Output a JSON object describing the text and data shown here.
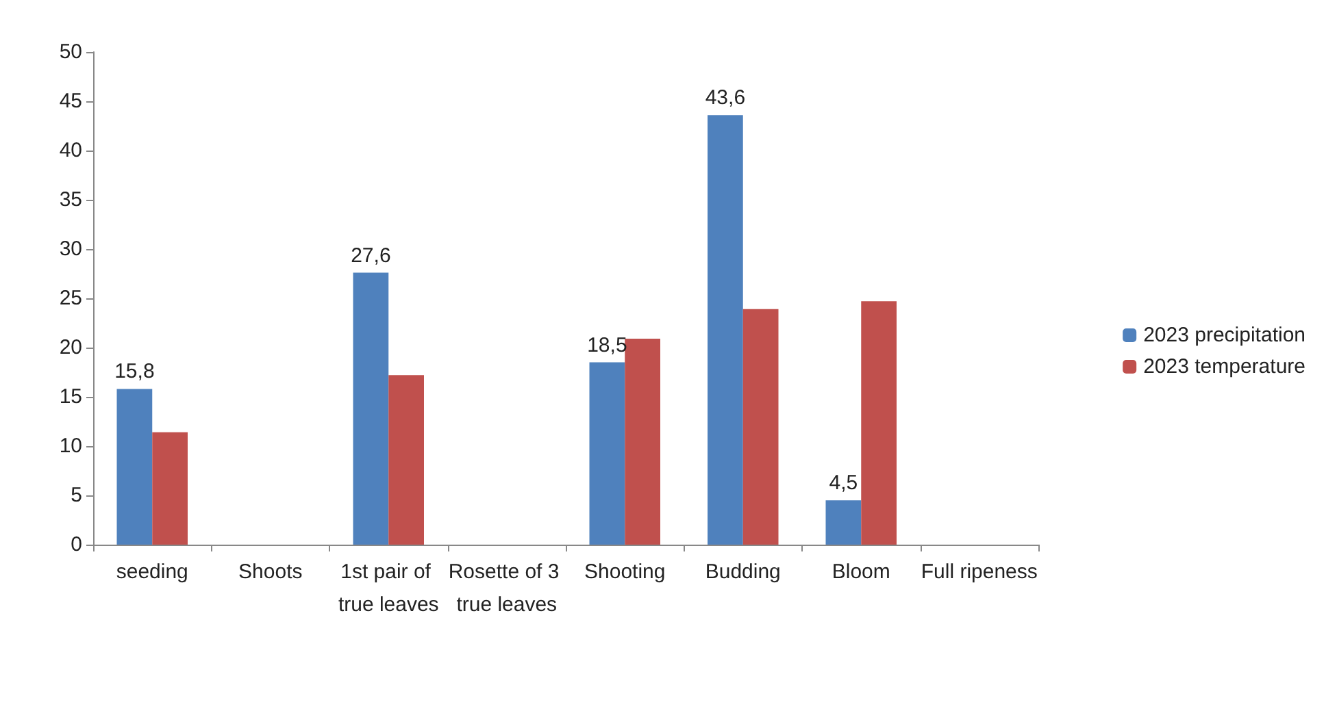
{
  "chart_data": {
    "type": "bar",
    "categories": [
      "seeding",
      "Shoots",
      "1st pair of true leaves",
      "Rosette of 3 true leaves",
      "Shooting",
      "Budding",
      "Bloom",
      "Full ripeness"
    ],
    "series": [
      {
        "name": "2023 precipitation",
        "color": "#4f81bd",
        "values": [
          15.8,
          null,
          27.6,
          null,
          18.5,
          43.6,
          4.5,
          null
        ],
        "value_labels": [
          "15,8",
          null,
          "27,6",
          null,
          "18,5",
          "43,6",
          "4,5",
          null
        ]
      },
      {
        "name": "2023 temperature",
        "color": "#c0504d",
        "values": [
          11.4,
          null,
          17.2,
          null,
          20.9,
          23.9,
          24.7,
          null
        ]
      }
    ],
    "ylim": [
      0,
      50
    ],
    "yticks": [
      0,
      5,
      10,
      15,
      20,
      25,
      30,
      35,
      40,
      45,
      50
    ],
    "grid": false,
    "legend": "right"
  }
}
